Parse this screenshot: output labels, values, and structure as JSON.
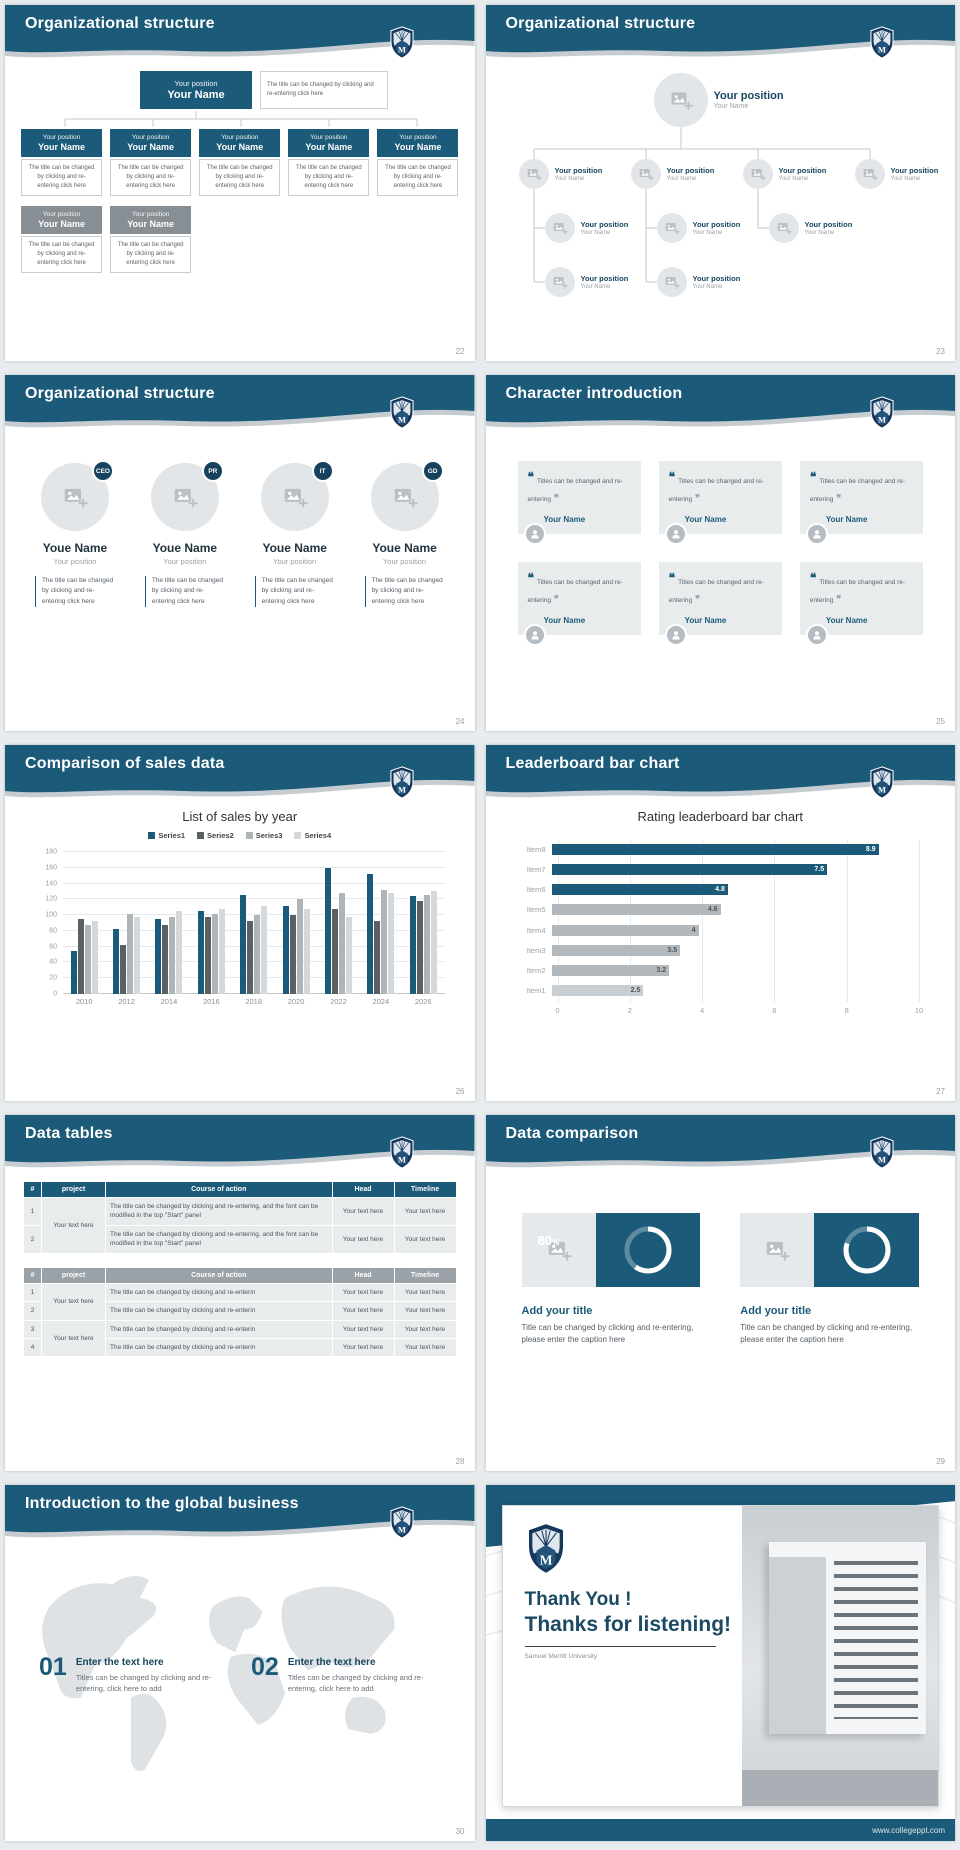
{
  "accent_color": "#1b5a78",
  "s22": {
    "title": "Organizational structure",
    "page": "22",
    "position": "Your position",
    "name": "Your Name",
    "note": "The title can be changed by clicking and re-entering click here",
    "desc": "The title can be changed by clicking and re-entering click here"
  },
  "s23": {
    "title": "Organizational structure",
    "page": "23",
    "position": "Your position",
    "name": "Your Name"
  },
  "s24": {
    "title": "Organizational structure",
    "page": "24",
    "desc": "The title can be changed by clicking and re-entering click here",
    "members": [
      {
        "badge": "CEO",
        "name": "Youe Name",
        "position": "Your position"
      },
      {
        "badge": "PR",
        "name": "Youe Name",
        "position": "Your position"
      },
      {
        "badge": "IT",
        "name": "Youe Name",
        "position": "Your position"
      },
      {
        "badge": "GD",
        "name": "Youe Name",
        "position": "Your position"
      }
    ]
  },
  "s25": {
    "title": "Character introduction",
    "page": "25",
    "quote_open": "❝",
    "quote_close": "❞",
    "text": "Titles can be changed and re-entering",
    "name": "Your Name"
  },
  "s26": {
    "title": "Comparison of sales data",
    "page": "26"
  },
  "s27": {
    "title": "Leaderboard bar chart",
    "page": "27"
  },
  "s28": {
    "title": "Data tables",
    "page": "28",
    "headers": [
      "#",
      "project",
      "Course of action",
      "Head",
      "Timeline"
    ],
    "table1": {
      "project": "Your text here",
      "rows": [
        {
          "num": "1",
          "action": "The title can be changed by clicking and re-entering, and the font can be modified in the top \"Start\" panel",
          "head": "Your text here",
          "timeline": "Your text here"
        },
        {
          "num": "2",
          "action": "The title can be changed by clicking and re-entering, and the font can be modified in the top \"Start\" panel",
          "head": "Your text here",
          "timeline": "Your text here"
        }
      ]
    },
    "table2": {
      "project_a": "Your text here",
      "project_b": "Your text here",
      "rows": [
        {
          "num": "1",
          "action": "The title can be changed by clicking and re-enterin",
          "head": "Your text here",
          "timeline": "Your text here"
        },
        {
          "num": "2",
          "action": "The title can be changed by clicking and re-enterin",
          "head": "Your text here",
          "timeline": "Your text here"
        },
        {
          "num": "3",
          "action": "The title can be changed by clicking and re-enterin",
          "head": "Your text here",
          "timeline": "Your text here"
        },
        {
          "num": "4",
          "action": "The title can be changed by clicking and re-enterin",
          "head": "Your text here",
          "timeline": "Your text here"
        }
      ]
    }
  },
  "s29": {
    "title": "Data comparison",
    "page": "29",
    "percent_sign": "%",
    "cards": [
      {
        "percent": "60",
        "title": "Add your title",
        "desc": "Title can be changed by clicking and re-entering, please enter the caption here"
      },
      {
        "percent": "80",
        "title": "Add your title",
        "desc": "Title can be changed by clicking and re-entering, please enter the caption here"
      }
    ]
  },
  "s30": {
    "title": "Introduction to the global business",
    "page": "30",
    "items": [
      {
        "num": "01",
        "title": "Enter the text here",
        "desc": "Titles can be changed by clicking and re-entering, click here to add"
      },
      {
        "num": "02",
        "title": "Enter the text here",
        "desc": "Titles can be changed by clicking and re-entering, click here to add"
      }
    ]
  },
  "s31": {
    "line1": "Thank You !",
    "line2": "Thanks for listening!",
    "subtitle": "Samuel Merritt University",
    "footer_url": "www.collegeppt.com"
  },
  "chart_data": [
    {
      "type": "bar",
      "title": "List of sales by year",
      "categories": [
        "2010",
        "2012",
        "2014",
        "2016",
        "2018",
        "2020",
        "2022",
        "2024",
        "2026"
      ],
      "series": [
        {
          "name": "Series1",
          "values": [
            55,
            82,
            95,
            105,
            125,
            112,
            160,
            152,
            124
          ]
        },
        {
          "name": "Series2",
          "values": [
            95,
            62,
            88,
            98,
            92,
            100,
            108,
            92,
            118
          ]
        },
        {
          "name": "Series3",
          "values": [
            88,
            102,
            98,
            102,
            100,
            120,
            128,
            132,
            126
          ]
        },
        {
          "name": "Series4",
          "values": [
            92,
            98,
            105,
            108,
            112,
            108,
            98,
            128,
            130
          ]
        }
      ],
      "colors": [
        "#1b5a78",
        "#5b6065",
        "#aeb4b8",
        "#d4d8db"
      ],
      "xlabel": "",
      "ylabel": "",
      "ylim": [
        0,
        180
      ],
      "ytick": 20,
      "legend_position": "top",
      "grid": true
    },
    {
      "type": "bar-horizontal",
      "title": "Rating leaderboard bar chart",
      "categories": [
        "Item1",
        "Item2",
        "Item3",
        "Item4",
        "Item5",
        "Item6",
        "Item7",
        "Item8"
      ],
      "values": [
        2.5,
        3.2,
        3.5,
        4,
        4.6,
        4.8,
        7.5,
        8.9
      ],
      "colors": [
        "#c9ced2",
        "#b2b8bc",
        "#b2b8bc",
        "#b2b8bc",
        "#b2b8bc",
        "#1b5a78",
        "#1b5a78",
        "#1b5a78"
      ],
      "label_colors": [
        "#4a545b",
        "#4a545b",
        "#4a545b",
        "#4a545b",
        "#4a545b",
        "#ffffff",
        "#ffffff",
        "#ffffff"
      ],
      "xlabel": "",
      "ylabel": "",
      "xlim": [
        0,
        10
      ],
      "xtick": 2,
      "grid": true
    }
  ]
}
